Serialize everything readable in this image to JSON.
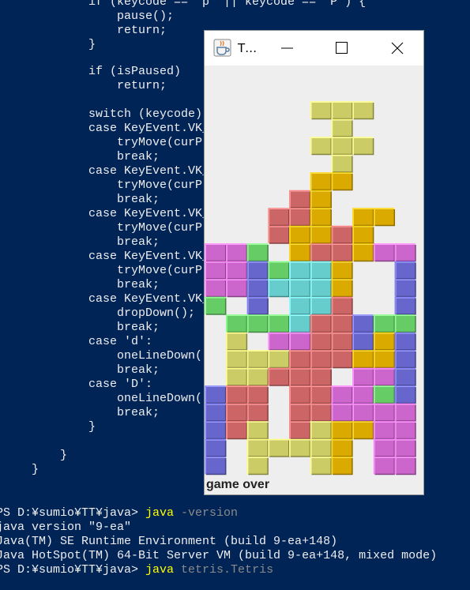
{
  "console": {
    "code": [
      "            if (keycode == 'p' || keycode == 'P') {",
      "                pause();",
      "                return;",
      "            }",
      "            if (isPaused)",
      "                return;",
      "            switch (keycode)",
      "            case KeyEvent.VK_",
      "                tryMove(curP",
      "                break;",
      "            case KeyEvent.VK_",
      "                tryMove(curP",
      "                break;",
      "            case KeyEvent.VK_",
      "                tryMove(curP",
      "                break;",
      "            case KeyEvent.VK_",
      "                tryMove(curP",
      "                break;",
      "            case KeyEvent.VK_",
      "                dropDown();",
      "                break;",
      "            case 'd':",
      "                oneLineDown(",
      "                break;",
      "            case 'D':",
      "                oneLineDown(",
      "                break;",
      "            }",
      "        }",
      "    }"
    ],
    "output": [
      {
        "prompt": "PS D:¥sumio¥TT¥java> ",
        "command": "java",
        "args": " -version"
      },
      {
        "text": "java version \"9-ea\""
      },
      {
        "text": "Java(TM) SE Runtime Environment (build 9-ea+148)"
      },
      {
        "text": "Java HotSpot(TM) 64-Bit Server VM (build 9-ea+148, mixed mode)"
      },
      {
        "prompt": "PS D:¥sumio¥TT¥java> ",
        "command": "java",
        "args": " tetris.Tetris"
      }
    ]
  },
  "window": {
    "title": "T…",
    "status": "game over"
  }
}
